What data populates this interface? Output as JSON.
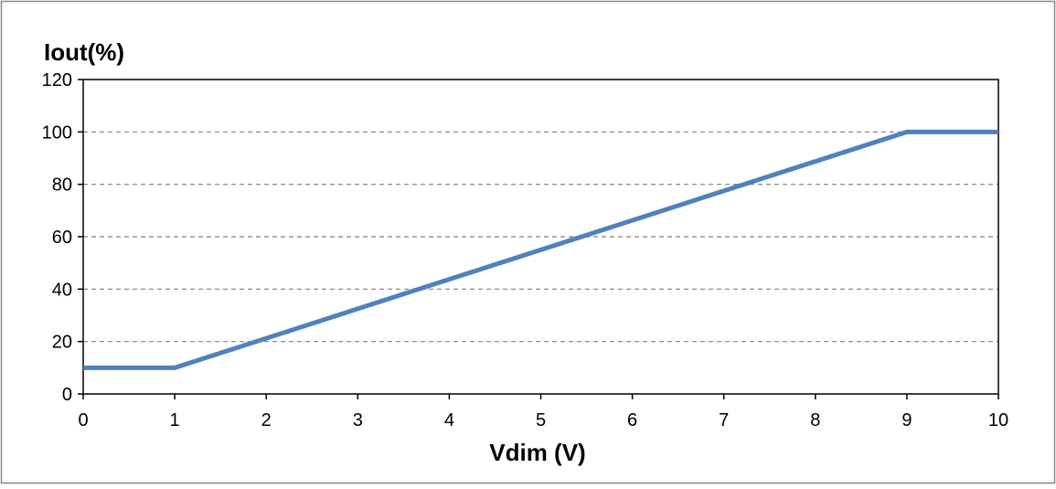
{
  "chart_data": {
    "type": "line",
    "title": "",
    "xlabel": "Vdim (V)",
    "ylabel": "Iout(%)",
    "xlim": [
      0,
      10
    ],
    "ylim": [
      0,
      120
    ],
    "xticks": [
      0,
      1,
      2,
      3,
      4,
      5,
      6,
      7,
      8,
      9,
      10
    ],
    "yticks": [
      0,
      20,
      40,
      60,
      80,
      100,
      120
    ],
    "grid": "horizontal dashed",
    "legend": "none",
    "colors": {
      "line": "#4f81bd",
      "grid": "#808080",
      "frame": "#000000",
      "outer_border": "#888888"
    },
    "series": [
      {
        "x": [
          0,
          1,
          9,
          10
        ],
        "y": [
          10,
          10,
          100,
          100
        ]
      }
    ]
  }
}
